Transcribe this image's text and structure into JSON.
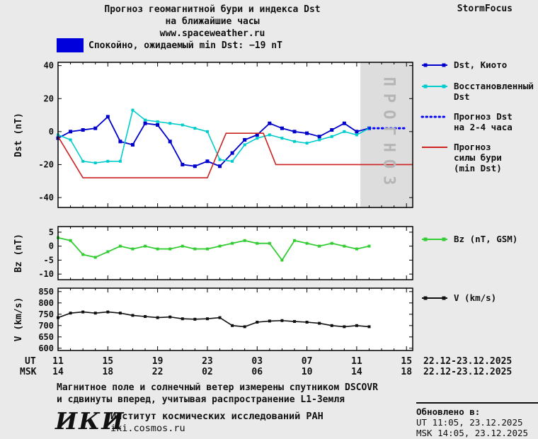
{
  "header": {
    "title_line1": "Прогноз геомагнитной бури и индекса Dst",
    "title_line2": "на ближайшие часы",
    "website": "www.spaceweather.ru",
    "brand": "StormFocus"
  },
  "status": {
    "text": "Спокойно, ожидаемый min Dst: −19 nT",
    "swatch_color": "#0000dd"
  },
  "forecast_band": {
    "label": "ПРОГНОЗ",
    "fill": "#dddddd",
    "text_color": "#b5b5b5"
  },
  "xaxis": {
    "ut_label": "UT",
    "msk_label": "MSK",
    "tick_hours": [
      11,
      15,
      19,
      23,
      27,
      31,
      35,
      39
    ],
    "ut_hours": [
      "11",
      "15",
      "19",
      "23",
      "03",
      "07",
      "11",
      "15"
    ],
    "msk_hours": [
      "14",
      "18",
      "22",
      "02",
      "06",
      "10",
      "14",
      "18"
    ],
    "date_range": "22.12-23.12.2025"
  },
  "legends": {
    "main": [
      {
        "label": "Dst, Киото",
        "color": "#0000cc",
        "style": "line-squares"
      },
      {
        "label": "Восстановленный\nDst",
        "color": "#00cccc",
        "style": "line-squares"
      },
      {
        "label": "Прогноз Dst\nна 2-4 часа",
        "color": "#0000ff",
        "style": "dotted"
      },
      {
        "label": "Прогноз\nсилы бури\n(min Dst)",
        "color": "#cc2222",
        "style": "line"
      }
    ],
    "bz": [
      {
        "label": "Bz (nT, GSM)",
        "color": "#33cc33",
        "style": "line-squares"
      }
    ],
    "v": [
      {
        "label": "V (km/s)",
        "color": "#111111",
        "style": "line-squares"
      }
    ]
  },
  "chart_data": [
    {
      "type": "line",
      "name": "dst",
      "ylabel": "Dst (nT)",
      "ylim": [
        -46,
        42
      ],
      "yticks": [
        40,
        20,
        0,
        -20,
        -40
      ],
      "xlim": [
        11,
        39.5
      ],
      "band": [
        35.3,
        39.5
      ],
      "series": [
        {
          "name": "Dst, Киото",
          "color": "#0000cc",
          "marker": "square",
          "width": 1.8,
          "msize": 5,
          "x": [
            11,
            12,
            13,
            14,
            15,
            16,
            17,
            18,
            19,
            20,
            21,
            22,
            23,
            24,
            25,
            26,
            27,
            28,
            29,
            30,
            31,
            32,
            33,
            34,
            35,
            36
          ],
          "y": [
            -4,
            0,
            1,
            2,
            9,
            -6,
            -8,
            5,
            4,
            -6,
            -20,
            -21,
            -18,
            -21,
            -13,
            -5,
            -2,
            5,
            2,
            0,
            -1,
            -3,
            1,
            5,
            0,
            2
          ]
        },
        {
          "name": "Восстановленный Dst",
          "color": "#00cccc",
          "marker": "square",
          "width": 1.6,
          "msize": 4,
          "x": [
            11,
            12,
            13,
            14,
            15,
            16,
            17,
            18,
            19,
            20,
            21,
            22,
            23,
            24,
            25,
            26,
            27,
            28,
            29,
            30,
            31,
            32,
            33,
            34,
            35,
            36
          ],
          "y": [
            -2,
            -5,
            -18,
            -19,
            -18,
            -18,
            13,
            7,
            6,
            5,
            4,
            2,
            0,
            -17,
            -18,
            -8,
            -4,
            -2,
            -4,
            -6,
            -7,
            -5,
            -3,
            0,
            -2,
            2
          ]
        },
        {
          "name": "Прогноз Dst на 2-4 часа",
          "color": "#0000ff",
          "style": "dotted",
          "width": 3,
          "msize": 0,
          "x": [
            36,
            37,
            38,
            39
          ],
          "y": [
            2,
            2,
            2,
            2
          ]
        },
        {
          "name": "Прогноз силы бури (min Dst)",
          "color": "#cc2222",
          "width": 1.6,
          "msize": 0,
          "x": [
            11,
            13,
            23,
            24.5,
            27.5,
            28.5,
            39.5
          ],
          "y": [
            -3,
            -28,
            -28,
            -1,
            -1,
            -20,
            -20
          ]
        }
      ]
    },
    {
      "type": "line",
      "name": "bz",
      "ylabel": "Bz (nT)",
      "ylim": [
        -12,
        7
      ],
      "yticks": [
        5,
        0,
        -5,
        -10
      ],
      "xlim": [
        11,
        39.5
      ],
      "series": [
        {
          "name": "Bz (nT, GSM)",
          "color": "#33cc33",
          "marker": "square",
          "width": 1.8,
          "msize": 4,
          "x": [
            11,
            12,
            13,
            14,
            15,
            16,
            17,
            18,
            19,
            20,
            21,
            22,
            23,
            24,
            25,
            26,
            27,
            28,
            29,
            30,
            31,
            32,
            33,
            34,
            35,
            36
          ],
          "y": [
            3,
            2,
            -3,
            -4,
            -2,
            0,
            -1,
            0,
            -1,
            -1,
            0,
            -1,
            -1,
            0,
            1,
            2,
            1,
            1,
            -5,
            2,
            1,
            0,
            1,
            0,
            -1,
            0
          ]
        }
      ]
    },
    {
      "type": "line",
      "name": "v",
      "ylabel": "V (km/s)",
      "ylim": [
        590,
        865
      ],
      "yticks": [
        850,
        800,
        750,
        700,
        650,
        600
      ],
      "xlim": [
        11,
        39.5
      ],
      "series": [
        {
          "name": "V (km/s)",
          "color": "#111111",
          "marker": "square",
          "width": 1.6,
          "msize": 4,
          "x": [
            11,
            12,
            13,
            14,
            15,
            16,
            17,
            18,
            19,
            20,
            21,
            22,
            23,
            24,
            25,
            26,
            27,
            28,
            29,
            30,
            31,
            32,
            33,
            34,
            35,
            36
          ],
          "y": [
            735,
            755,
            760,
            755,
            760,
            755,
            745,
            740,
            735,
            738,
            730,
            728,
            730,
            735,
            700,
            695,
            715,
            720,
            722,
            718,
            715,
            710,
            700,
            695,
            700,
            695
          ]
        }
      ]
    }
  ],
  "footer": {
    "note_line1": "Магнитное поле и солнечный ветер измерены спутником DSCOVR",
    "note_line2": "и сдвинуты вперед, учитывая распространение L1-Земля",
    "logo": "ИКИ",
    "institute": "Институт космических исследований РАН",
    "site": "iki.cosmos.ru",
    "updated_label": "Обновлено в:",
    "updated_ut": "UT  11:05, 23.12.2025",
    "updated_msk": "MSK 14:05, 23.12.2025"
  }
}
